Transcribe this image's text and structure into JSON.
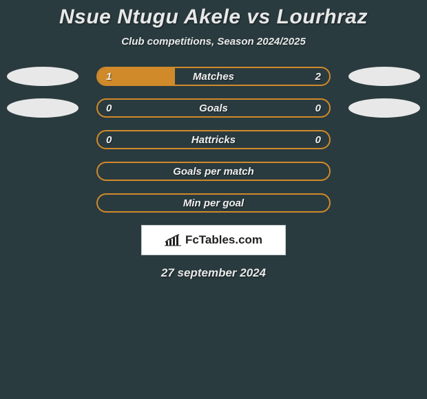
{
  "title": "Nsue Ntugu Akele vs Lourhraz",
  "subtitle": "Club competitions, Season 2024/2025",
  "date": "27 september 2024",
  "logo_text": "FcTables.com",
  "background_color": "#2a3b3f",
  "bar_border_color": "#d08a2a",
  "bar_fill_color": "#d08a2a",
  "ellipse_color": "#e8e8e8",
  "text_color": "#e8e8e8",
  "rows": [
    {
      "label": "Matches",
      "left_value": "1",
      "right_value": "2",
      "fill_percent": 33.3,
      "show_left_ellipse": true,
      "show_right_ellipse": true
    },
    {
      "label": "Goals",
      "left_value": "0",
      "right_value": "0",
      "fill_percent": 0,
      "show_left_ellipse": true,
      "show_right_ellipse": true
    },
    {
      "label": "Hattricks",
      "left_value": "0",
      "right_value": "0",
      "fill_percent": 0,
      "show_left_ellipse": false,
      "show_right_ellipse": false
    },
    {
      "label": "Goals per match",
      "left_value": "",
      "right_value": "",
      "fill_percent": 0,
      "show_left_ellipse": false,
      "show_right_ellipse": false
    },
    {
      "label": "Min per goal",
      "left_value": "",
      "right_value": "",
      "fill_percent": 0,
      "show_left_ellipse": false,
      "show_right_ellipse": false
    }
  ]
}
